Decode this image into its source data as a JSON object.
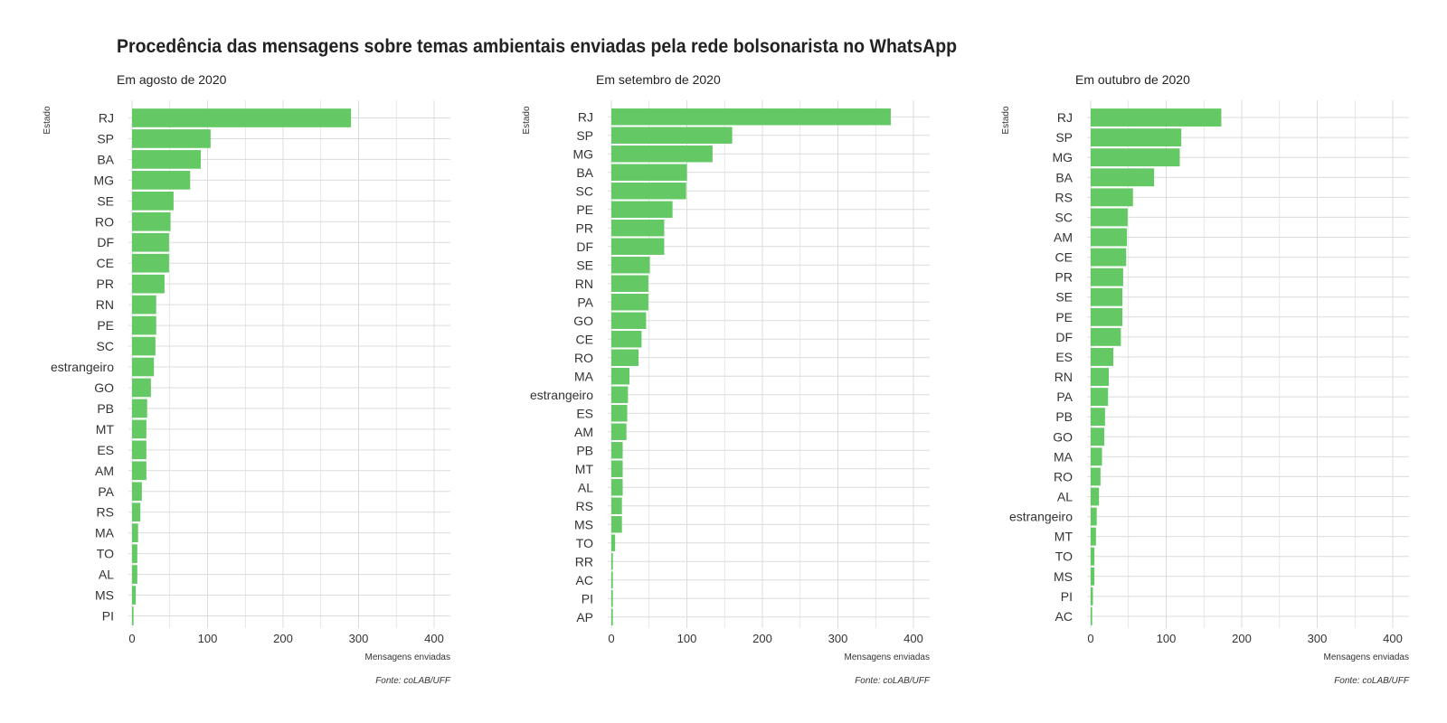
{
  "title": "Procedência das mensagens sobre temas ambientais enviadas pela rede bolsonarista no WhatsApp",
  "colors": {
    "bar": "#5cc65c",
    "grid": "#dcdcdc",
    "text": "#333333"
  },
  "chart_data": [
    {
      "type": "bar",
      "orientation": "horizontal",
      "subtitle": "Em agosto de 2020",
      "ylabel": "Estado",
      "xlabel": "Mensagens enviadas",
      "caption": "Fonte: coLAB/UFF",
      "xlim": [
        0,
        420
      ],
      "xticks": [
        0,
        100,
        200,
        300,
        400
      ],
      "grid": true,
      "categories": [
        "RJ",
        "SP",
        "BA",
        "MG",
        "SE",
        "RO",
        "DF",
        "CE",
        "PR",
        "RN",
        "PE",
        "SC",
        "estrangeiro",
        "GO",
        "PB",
        "MT",
        "ES",
        "AM",
        "PA",
        "RS",
        "MA",
        "TO",
        "AL",
        "MS",
        "PI"
      ],
      "values": [
        290,
        104,
        91,
        77,
        55,
        51,
        49,
        49,
        43,
        32,
        32,
        31,
        29,
        25,
        20,
        19,
        19,
        19,
        13,
        11,
        8,
        7,
        7,
        5,
        2
      ]
    },
    {
      "type": "bar",
      "orientation": "horizontal",
      "subtitle": "Em setembro de 2020",
      "ylabel": "Estado",
      "xlabel": "Mensagens enviadas",
      "caption": "Fonte: coLAB/UFF",
      "xlim": [
        0,
        420
      ],
      "xticks": [
        0,
        100,
        200,
        300,
        400
      ],
      "grid": true,
      "categories": [
        "RJ",
        "SP",
        "MG",
        "BA",
        "SC",
        "PE",
        "PR",
        "DF",
        "SE",
        "RN",
        "PA",
        "GO",
        "CE",
        "RO",
        "MA",
        "estrangeiro",
        "ES",
        "AM",
        "PB",
        "MT",
        "AL",
        "RS",
        "MS",
        "TO",
        "RR",
        "AC",
        "PI",
        "AP"
      ],
      "values": [
        370,
        160,
        134,
        100,
        99,
        81,
        70,
        70,
        51,
        49,
        49,
        46,
        40,
        36,
        24,
        22,
        21,
        20,
        15,
        15,
        15,
        14,
        14,
        5,
        2,
        2,
        2,
        2
      ]
    },
    {
      "type": "bar",
      "orientation": "horizontal",
      "subtitle": "Em outubro de 2020",
      "ylabel": "Estado",
      "xlabel": "Mensagens enviadas",
      "caption": "Fonte: coLAB/UFF",
      "xlim": [
        0,
        420
      ],
      "xticks": [
        0,
        100,
        200,
        300,
        400
      ],
      "grid": true,
      "categories": [
        "RJ",
        "SP",
        "MG",
        "BA",
        "RS",
        "SC",
        "AM",
        "CE",
        "PR",
        "SE",
        "PE",
        "DF",
        "ES",
        "RN",
        "PA",
        "PB",
        "GO",
        "MA",
        "RO",
        "AL",
        "estrangeiro",
        "MT",
        "TO",
        "MS",
        "PI",
        "AC"
      ],
      "values": [
        173,
        120,
        118,
        84,
        56,
        49,
        48,
        47,
        43,
        42,
        42,
        40,
        30,
        24,
        23,
        19,
        18,
        15,
        13,
        11,
        8,
        7,
        5,
        5,
        3,
        2
      ]
    }
  ]
}
